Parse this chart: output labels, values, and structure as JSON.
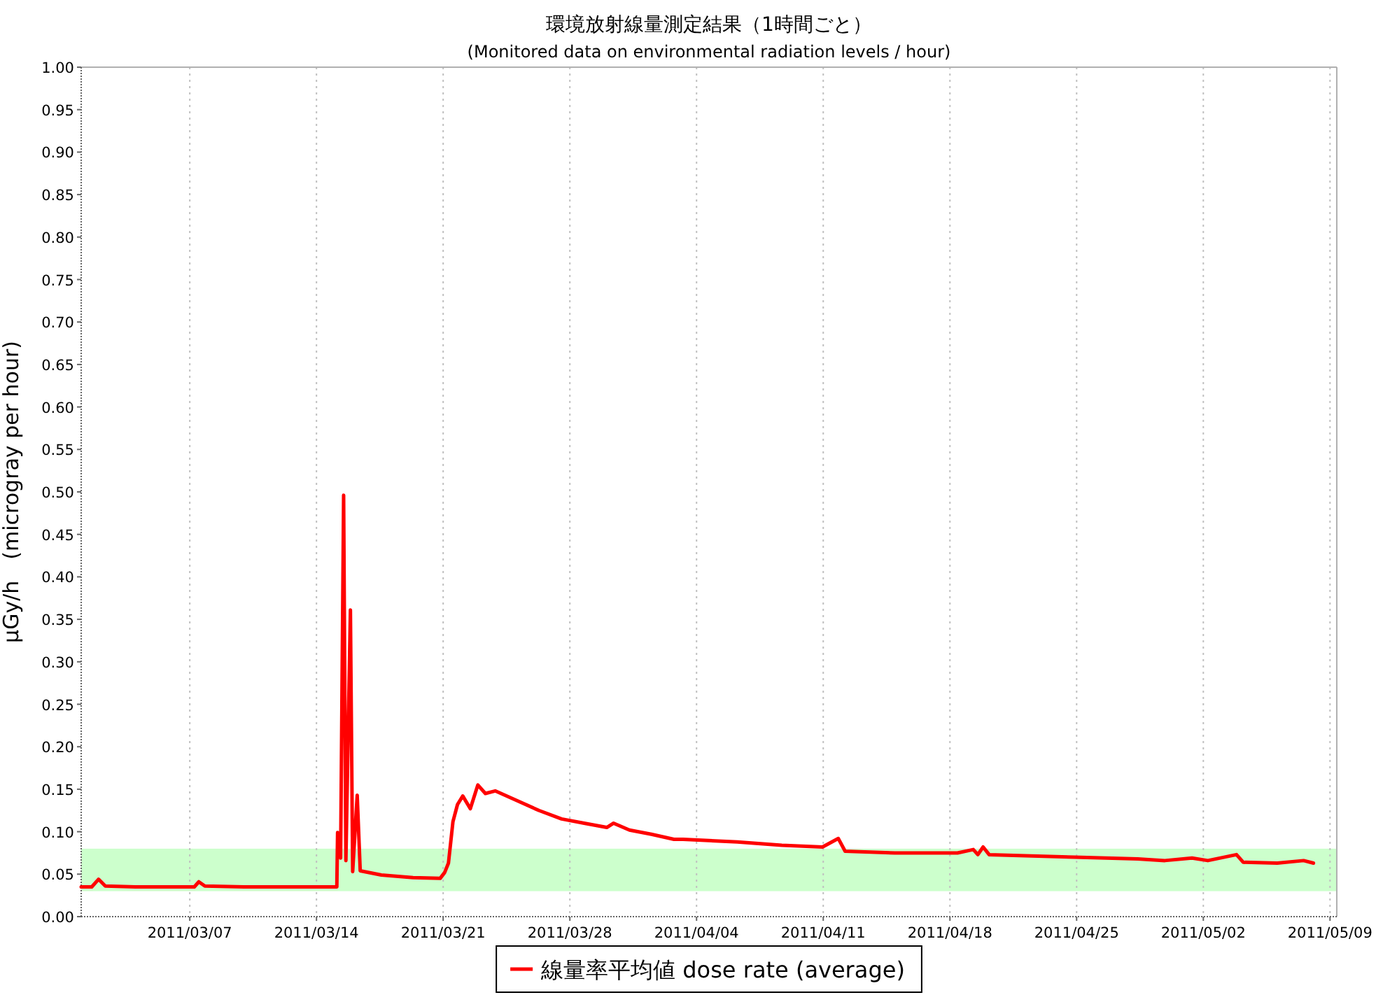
{
  "chart_data": {
    "type": "line",
    "title": "環境放射線量測定結果（1時間ごと）",
    "subtitle": "(Monitored data on environmental radiation levels / hour)",
    "ylabel": "μGy/h　(microgray per hour)",
    "xlim": [
      "2011-03-01T00:00",
      "2011-05-09T09:00"
    ],
    "ylim": [
      0,
      1
    ],
    "xticks": [
      {
        "value": "2011-03-07",
        "label": "2011/03/07"
      },
      {
        "value": "2011-03-14",
        "label": "2011/03/14"
      },
      {
        "value": "2011-03-21",
        "label": "2011/03/21"
      },
      {
        "value": "2011-03-28",
        "label": "2011/03/28"
      },
      {
        "value": "2011-04-04",
        "label": "2011/04/04"
      },
      {
        "value": "2011-04-11",
        "label": "2011/04/11"
      },
      {
        "value": "2011-04-18",
        "label": "2011/04/18"
      },
      {
        "value": "2011-04-25",
        "label": "2011/04/25"
      },
      {
        "value": "2011-05-02",
        "label": "2011/05/02"
      },
      {
        "value": "2011-05-09",
        "label": "2011/05/09"
      }
    ],
    "yticks": [
      {
        "value": 0,
        "label": "0.00"
      },
      0.05,
      {
        "value": 0.1,
        "label": "0.10"
      },
      0.15,
      {
        "value": 0.2,
        "label": "0.20"
      },
      0.25,
      {
        "value": 0.3,
        "label": "0.30"
      },
      0.35,
      {
        "value": 0.4,
        "label": "0.40"
      },
      0.45,
      {
        "value": 0.5,
        "label": "0.50"
      },
      0.55,
      {
        "value": 0.6,
        "label": "0.60"
      },
      0.65,
      {
        "value": 0.7,
        "label": "0.70"
      },
      0.75,
      {
        "value": 0.8,
        "label": "0.80"
      },
      0.85,
      {
        "value": 0.9,
        "label": "0.90"
      },
      0.95,
      {
        "value": 1,
        "label": "1.00"
      }
    ],
    "grid": "x",
    "legend": "bottom",
    "marker": "none",
    "line_style": "solid",
    "bands": [
      {
        "axis": "y",
        "from": 0.03,
        "to": 0.08,
        "color": "#ccffcc"
      }
    ],
    "series": [
      {
        "name": "線量率平均値 dose rate (average)",
        "color": "#ff0000",
        "x": [
          "2011-03-01T00:00",
          "2011-03-01T14:00",
          "2011-03-01T23:00",
          "2011-03-02T08:00",
          "2011-03-04T00:00",
          "2011-03-07T06:00",
          "2011-03-07T12:00",
          "2011-03-07T20:00",
          "2011-03-10T00:00",
          "2011-03-13T00:00",
          "2011-03-15T03:00",
          "2011-03-15T04:00",
          "2011-03-15T08:00",
          "2011-03-15T12:00",
          "2011-03-15T15:00",
          "2011-03-15T21:00",
          "2011-03-16T00:00",
          "2011-03-16T06:00",
          "2011-03-16T10:00",
          "2011-03-17T14:00",
          "2011-03-19T08:00",
          "2011-03-20T20:00",
          "2011-03-21T02:00",
          "2011-03-21T07:00",
          "2011-03-21T13:00",
          "2011-03-21T19:00",
          "2011-03-22T02:00",
          "2011-03-22T12:00",
          "2011-03-22T22:00",
          "2011-03-23T08:00",
          "2011-03-23T21:00",
          "2011-03-25T01:00",
          "2011-03-26T07:00",
          "2011-03-27T13:00",
          "2011-03-28T19:00",
          "2011-03-30T01:00",
          "2011-03-30T10:00",
          "2011-03-31T07:00",
          "2011-04-01T12:00",
          "2011-04-02T18:00",
          "2011-04-03T06:00",
          "2011-04-06T06:00",
          "2011-04-08T17:00",
          "2011-04-10T23:00",
          "2011-04-11T20:00",
          "2011-04-12T05:00",
          "2011-04-14T23:00",
          "2011-04-18T10:00",
          "2011-04-19T07:00",
          "2011-04-19T13:00",
          "2011-04-19T20:00",
          "2011-04-20T04:00",
          "2011-04-24T21:00",
          "2011-04-28T09:00",
          "2011-04-29T21:00",
          "2011-05-01T09:00",
          "2011-05-02T06:00",
          "2011-05-03T20:00",
          "2011-05-04T05:00",
          "2011-05-06T02:00",
          "2011-05-07T13:00",
          "2011-05-08T02:00"
        ],
        "values": [
          0.035,
          0.035,
          0.044,
          0.036,
          0.035,
          0.035,
          0.041,
          0.036,
          0.035,
          0.035,
          0.035,
          0.099,
          0.069,
          0.496,
          0.066,
          0.361,
          0.053,
          0.143,
          0.054,
          0.049,
          0.046,
          0.045,
          0.052,
          0.063,
          0.112,
          0.132,
          0.142,
          0.127,
          0.155,
          0.145,
          0.148,
          0.137,
          0.125,
          0.115,
          0.11,
          0.105,
          0.11,
          0.102,
          0.097,
          0.091,
          0.091,
          0.088,
          0.084,
          0.082,
          0.092,
          0.077,
          0.075,
          0.075,
          0.079,
          0.073,
          0.082,
          0.073,
          0.07,
          0.068,
          0.066,
          0.069,
          0.066,
          0.073,
          0.064,
          0.063,
          0.066,
          0.063
        ]
      }
    ]
  }
}
